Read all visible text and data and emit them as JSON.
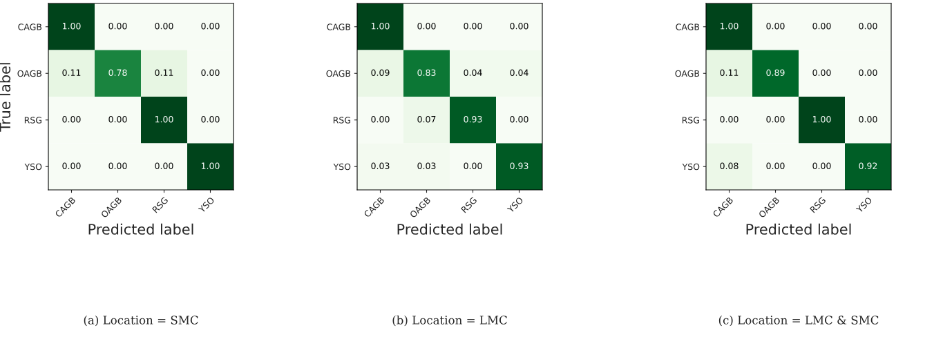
{
  "chart_data": [
    {
      "type": "heatmap",
      "ylabel": "True label",
      "xlabel": "Predicted label",
      "annotations": [
        "(a) Location = SMC"
      ],
      "categories": [
        "CAGB",
        "OAGB",
        "RSG",
        "YSO"
      ],
      "y_categories": [
        "CAGB",
        "OAGB",
        "RSG",
        "YSO"
      ],
      "cells": [
        [
          1.0,
          0.0,
          0.0,
          0.0
        ],
        [
          0.11,
          0.78,
          0.11,
          0.0
        ],
        [
          0.0,
          0.0,
          1.0,
          0.0
        ],
        [
          0.0,
          0.0,
          0.0,
          1.0
        ]
      ],
      "cell_labels": [
        [
          "1.00",
          "0.00",
          "0.00",
          "0.00"
        ],
        [
          "0.11",
          "0.78",
          "0.11",
          "0.00"
        ],
        [
          "0.00",
          "0.00",
          "1.00",
          "0.00"
        ],
        [
          "0.00",
          "0.00",
          "0.00",
          "1.00"
        ]
      ]
    },
    {
      "type": "heatmap",
      "xlabel": "Predicted label",
      "annotations": [
        "(b) Location = LMC"
      ],
      "categories": [
        "CAGB",
        "OAGB",
        "RSG",
        "YSO"
      ],
      "y_categories": [
        "CAGB",
        "OAGB",
        "RSG",
        "YSO"
      ],
      "cells": [
        [
          1.0,
          0.0,
          0.0,
          0.0
        ],
        [
          0.09,
          0.83,
          0.04,
          0.04
        ],
        [
          0.0,
          0.07,
          0.93,
          0.0
        ],
        [
          0.03,
          0.03,
          0.0,
          0.93
        ]
      ],
      "cell_labels": [
        [
          "1.00",
          "0.00",
          "0.00",
          "0.00"
        ],
        [
          "0.09",
          "0.83",
          "0.04",
          "0.04"
        ],
        [
          "0.00",
          "0.07",
          "0.93",
          "0.00"
        ],
        [
          "0.03",
          "0.03",
          "0.00",
          "0.93"
        ]
      ]
    },
    {
      "type": "heatmap",
      "xlabel": "Predicted label",
      "annotations": [
        "(c) Location = LMC & SMC"
      ],
      "categories": [
        "CAGB",
        "OAGB",
        "RSG",
        "YSO"
      ],
      "y_categories": [
        "CAGB",
        "OAGB",
        "RSG",
        "YSO"
      ],
      "cells": [
        [
          1.0,
          0.0,
          0.0,
          0.0
        ],
        [
          0.11,
          0.89,
          0.0,
          0.0
        ],
        [
          0.0,
          0.0,
          1.0,
          0.0
        ],
        [
          0.08,
          0.0,
          0.0,
          0.92
        ]
      ],
      "cell_labels": [
        [
          "1.00",
          "0.00",
          "0.00",
          "0.00"
        ],
        [
          "0.11",
          "0.89",
          "0.00",
          "0.00"
        ],
        [
          "0.00",
          "0.00",
          "1.00",
          "0.00"
        ],
        [
          "0.08",
          "0.00",
          "0.00",
          "0.92"
        ]
      ]
    }
  ]
}
